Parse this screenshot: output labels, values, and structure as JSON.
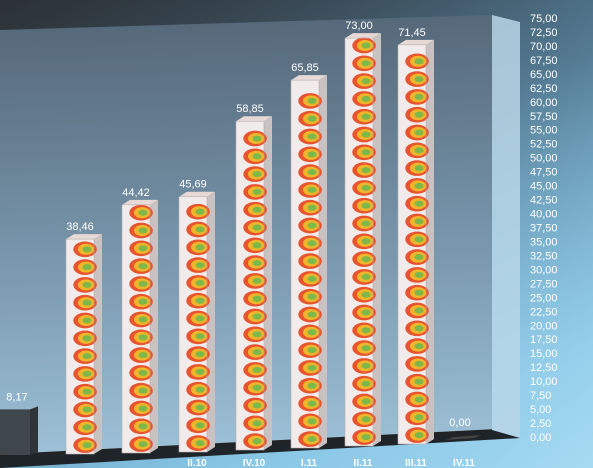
{
  "chart_data": {
    "type": "bar",
    "categories": [
      "",
      "",
      "",
      "II.10",
      "IV.10",
      "I.11",
      "II.11",
      "III.11",
      "IV.11"
    ],
    "values": [
      8.17,
      38.46,
      44.42,
      45.69,
      58.85,
      65.85,
      73.0,
      71.45,
      0.0
    ],
    "data_labels": [
      "8,17",
      "38,46",
      "44,42",
      "45,69",
      "58,85",
      "65,85",
      "73,00",
      "71,45",
      "0,00"
    ],
    "ylim": [
      0,
      75
    ],
    "ytick_labels": [
      "0,00",
      "2,50",
      "5,00",
      "7,50",
      "10,00",
      "12,50",
      "15,00",
      "17,50",
      "20,00",
      "22,50",
      "25,00",
      "27,50",
      "30,00",
      "32,50",
      "35,00",
      "37,50",
      "40,00",
      "42,50",
      "45,00",
      "47,50",
      "50,00",
      "52,50",
      "55,00",
      "57,50",
      "60,00",
      "62,50",
      "65,00",
      "67,50",
      "70,00",
      "72,50",
      "75,00"
    ],
    "title": "",
    "xlabel": "",
    "ylabel": "",
    "grid": false,
    "legend": "none",
    "style": "3d-column",
    "colors": {
      "wall_top": "#5f7a8f",
      "wall_bottom": "#8fb6cf",
      "bg_top": "#2c3338",
      "bg_bottom": "#86c3e3",
      "first_bar": "#3f474d",
      "pattern_outer": "#e7542f",
      "pattern_middle": "#f0b52a",
      "pattern_inner": "#7cb84a",
      "bar_front": "#f1eceb",
      "bar_side": "#c9c2c2",
      "label": "#ffffff"
    }
  }
}
